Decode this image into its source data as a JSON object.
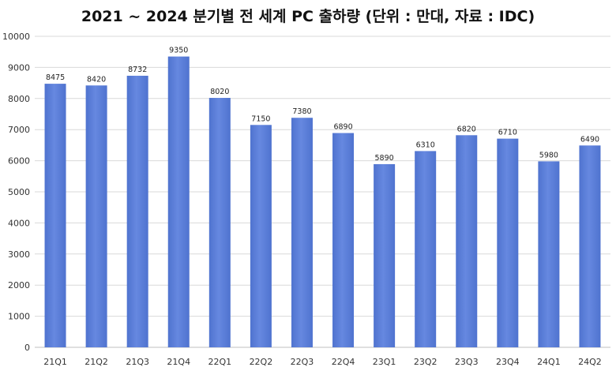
{
  "chart_data": {
    "type": "bar",
    "title": "2021 ~ 2024 분기별 전 세계 PC 출하량 (단위 : 만대, 자료 : IDC)",
    "xlabel": "",
    "ylabel": "",
    "categories": [
      "21Q1",
      "21Q2",
      "21Q3",
      "21Q4",
      "22Q1",
      "22Q2",
      "22Q3",
      "22Q4",
      "23Q1",
      "23Q2",
      "23Q3",
      "23Q4",
      "24Q1",
      "24Q2"
    ],
    "values": [
      8475,
      8420,
      8732,
      9350,
      8020,
      7150,
      7380,
      6890,
      5890,
      6310,
      6820,
      6710,
      5980,
      6490
    ],
    "ylim": [
      0,
      10000
    ],
    "yticks": [
      0,
      1000,
      2000,
      3000,
      4000,
      5000,
      6000,
      7000,
      8000,
      9000,
      10000
    ],
    "grid": true,
    "legend": "none",
    "colors": {
      "bar": "#5b7fd8",
      "grid": "#d9d9d9",
      "axis": "#bfbfbf"
    }
  }
}
